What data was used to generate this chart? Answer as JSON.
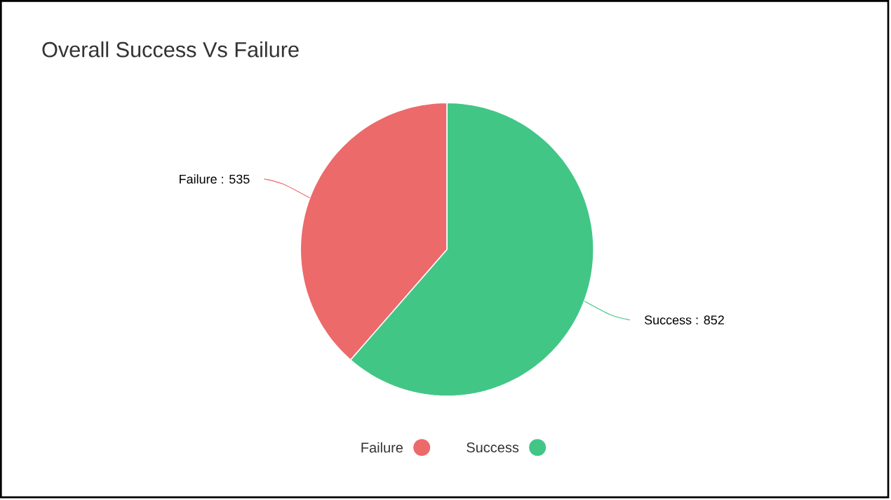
{
  "chart_data": {
    "type": "pie",
    "title": "Overall Success Vs Failure",
    "categories": [
      "Failure",
      "Success"
    ],
    "values": [
      535,
      852
    ],
    "colors": [
      "#ec6a6a",
      "#41c686"
    ],
    "value_labels": [
      "Failure : 535",
      "Success : 852"
    ],
    "legend": "bottom"
  }
}
